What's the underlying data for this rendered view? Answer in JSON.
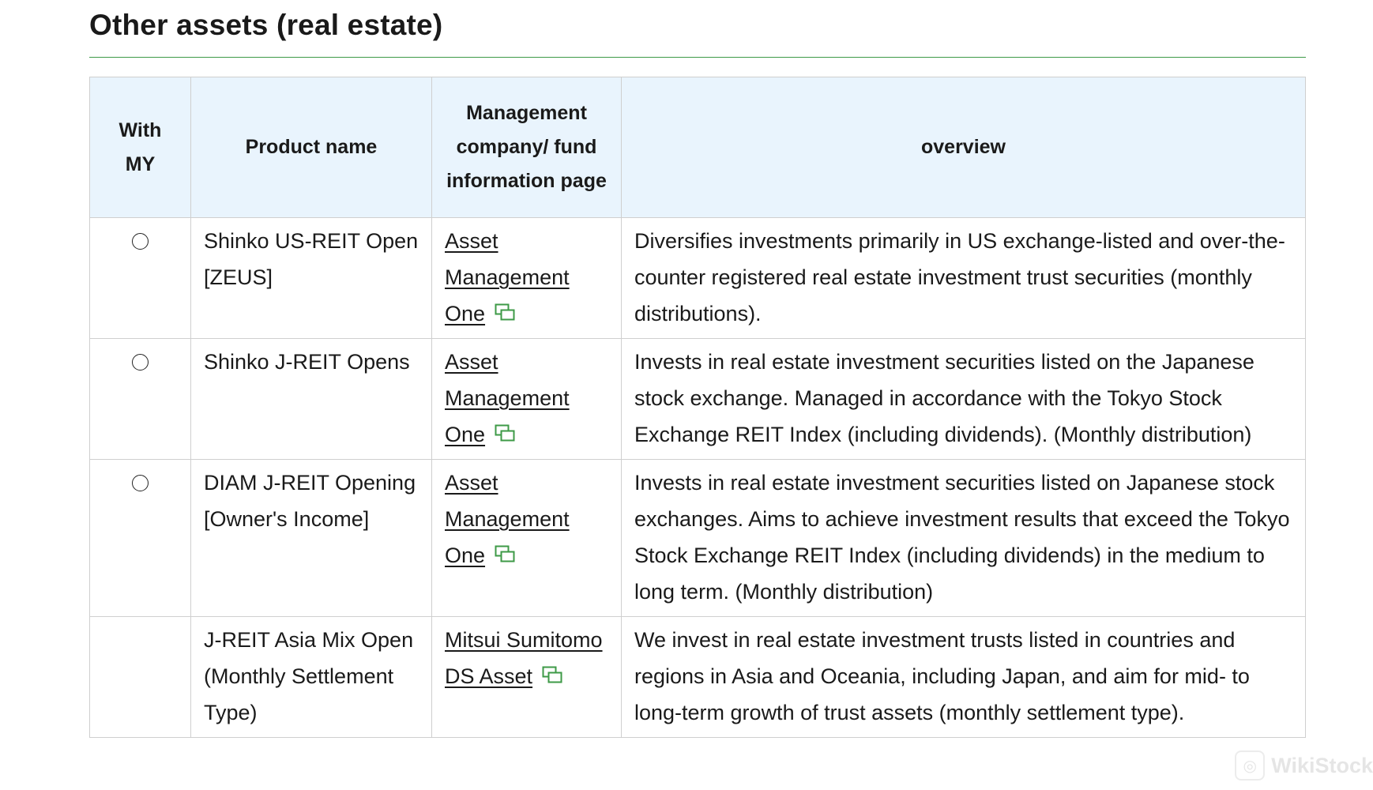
{
  "section": {
    "title": "Other assets (real estate)"
  },
  "table": {
    "headers": {
      "with_my": "With MY",
      "product_name": "Product name",
      "management": "Management company/ fund information page",
      "overview": "overview"
    },
    "rows": [
      {
        "with_my": true,
        "product_name": "Shinko US-REIT Open [ZEUS]",
        "management": "Asset Management One",
        "overview": "Diversifies investments primarily in US exchange-listed and over-the-counter registered real estate investment trust securities (monthly distributions)."
      },
      {
        "with_my": true,
        "product_name": "Shinko J-REIT Opens",
        "management": "Asset Management One",
        "overview": "Invests in real estate investment securities listed on the Japanese stock exchange. Managed in accordance with the Tokyo Stock Exchange REIT Index (including dividends). (Monthly distribution)"
      },
      {
        "with_my": true,
        "product_name": "DIAM J-REIT Opening [Owner's Income]",
        "management": "Asset Management One",
        "overview": "Invests in real estate investment securities listed on Japanese stock exchanges. Aims to achieve investment results that exceed the Tokyo Stock Exchange REIT Index (including dividends) in the medium to long term. (Monthly distribution)"
      },
      {
        "with_my": false,
        "product_name": "J-REIT Asia Mix Open (Monthly Settlement Type)",
        "management": "Mitsui Sumitomo DS Asset",
        "overview": "We invest in real estate investment trusts listed in countries and regions in Asia and Oceania, including Japan, and aim for mid- to long-term growth of trust assets (monthly settlement type)."
      }
    ]
  },
  "icons": {
    "radio": "radio-circle-icon",
    "external": "external-window-icon"
  },
  "colors": {
    "accent_green": "#3e9a47",
    "header_bg": "#e9f4fd",
    "border": "#cfcfcf"
  },
  "watermark": {
    "text": "WikiStock"
  }
}
